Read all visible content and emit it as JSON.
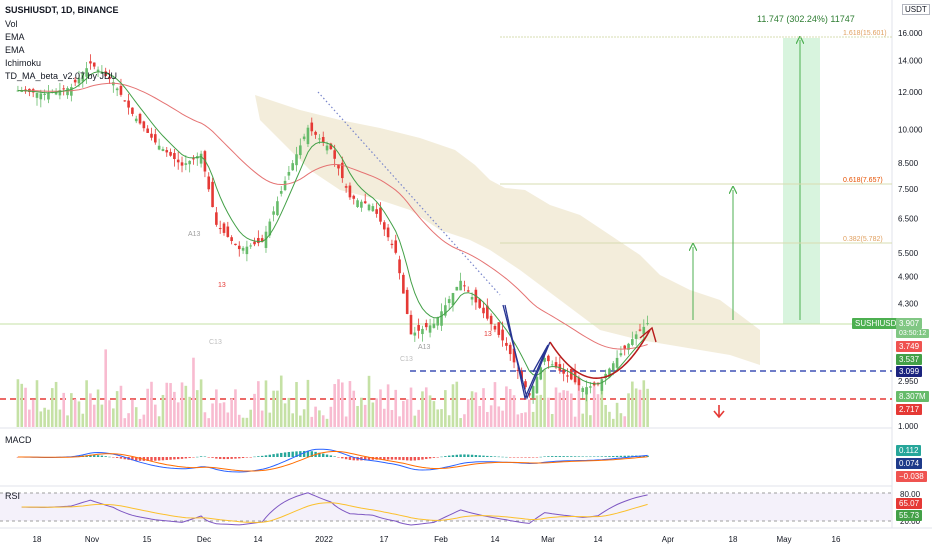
{
  "header": {
    "symbol_line": "SUSHIUSDT, 1D, BINANCE",
    "indicators": [
      "Vol",
      "EMA",
      "EMA",
      "Ichimoku",
      "TD_MA_beta_v2.07 by JDU"
    ]
  },
  "axis": {
    "currency": "USDT",
    "price_ticks": [
      "16.000",
      "14.000",
      "12.000",
      "10.000",
      "8.500",
      "7.500",
      "6.500",
      "5.500",
      "4.900",
      "4.300",
      "2.950",
      "1.000"
    ],
    "x_ticks": [
      "18",
      "Nov",
      "15",
      "Dec",
      "14",
      "2022",
      "17",
      "Feb",
      "14",
      "Mar",
      "14",
      "Apr",
      "18",
      "May",
      "16"
    ]
  },
  "price_tags": {
    "symbol_tag": "SUSHIUSDT",
    "last_price": "3.907",
    "countdown": "03:50:12",
    "ema_red": "3.749",
    "ema_green": "3.537",
    "blue_level": "3.099",
    "volume": "8.307M",
    "red_level": "2.717"
  },
  "annotations": {
    "target_box": "11.747 (302.24%) 11747",
    "fib_1618": "1.618(15.601)",
    "fib_0618": "0.618(7.657)",
    "fib_0382": "0.382(5.782)",
    "td_labels": [
      "A13",
      "13",
      "C13",
      "A13",
      "C13",
      "13"
    ]
  },
  "macd": {
    "title": "MACD",
    "values": [
      "0.112",
      "0.074",
      "−0.038"
    ],
    "colors": [
      "#26a69a",
      "#2962ff",
      "#ef5350"
    ]
  },
  "rsi": {
    "title": "RSI",
    "ticks": [
      "80.00",
      "20.00"
    ],
    "values": [
      "65.07",
      "55.73"
    ]
  },
  "chart_data": {
    "type": "candlestick",
    "symbol": "SUSHIUSDT",
    "interval": "1D",
    "exchange": "BINANCE",
    "scale": "log",
    "ylim": [
      1.0,
      16.5
    ],
    "close_series": [
      {
        "date": "2021-10-13",
        "close": 12.1
      },
      {
        "date": "2021-10-20",
        "close": 11.9
      },
      {
        "date": "2021-10-27",
        "close": 12.3
      },
      {
        "date": "2021-11-01",
        "close": 13.8
      },
      {
        "date": "2021-11-07",
        "close": 12.6
      },
      {
        "date": "2021-11-12",
        "close": 10.8
      },
      {
        "date": "2021-11-18",
        "close": 9.4
      },
      {
        "date": "2021-11-25",
        "close": 8.4
      },
      {
        "date": "2021-11-30",
        "close": 8.9
      },
      {
        "date": "2021-12-04",
        "close": 6.3
      },
      {
        "date": "2021-12-10",
        "close": 5.6
      },
      {
        "date": "2021-12-16",
        "close": 5.8
      },
      {
        "date": "2021-12-22",
        "close": 7.8
      },
      {
        "date": "2021-12-28",
        "close": 10.1
      },
      {
        "date": "2022-01-03",
        "close": 9.1
      },
      {
        "date": "2022-01-08",
        "close": 7.2
      },
      {
        "date": "2022-01-14",
        "close": 6.9
      },
      {
        "date": "2022-01-20",
        "close": 5.5
      },
      {
        "date": "2022-01-24",
        "close": 3.7
      },
      {
        "date": "2022-01-30",
        "close": 3.9
      },
      {
        "date": "2022-02-06",
        "close": 4.8
      },
      {
        "date": "2022-02-12",
        "close": 4.1
      },
      {
        "date": "2022-02-18",
        "close": 3.5
      },
      {
        "date": "2022-02-24",
        "close": 2.75
      },
      {
        "date": "2022-02-28",
        "close": 3.3
      },
      {
        "date": "2022-03-04",
        "close": 3.1
      },
      {
        "date": "2022-03-10",
        "close": 2.85
      },
      {
        "date": "2022-03-14",
        "close": 2.9
      },
      {
        "date": "2022-03-19",
        "close": 3.3
      },
      {
        "date": "2022-03-24",
        "close": 3.7
      },
      {
        "date": "2022-03-27",
        "close": 3.907
      }
    ],
    "levels": {
      "resistance_green": 3.907,
      "blue_dashed": 3.099,
      "red_dashed": 2.717,
      "fib_1_618": 15.601,
      "fib_0_618": 7.657,
      "fib_0_382": 5.782
    },
    "volume_last": "8.307M",
    "macd": {
      "macd": 0.074,
      "signal": -0.038,
      "hist": 0.112
    },
    "rsi": {
      "rsi": 65.07,
      "ma": 55.73,
      "upper": 80,
      "lower": 20
    }
  }
}
